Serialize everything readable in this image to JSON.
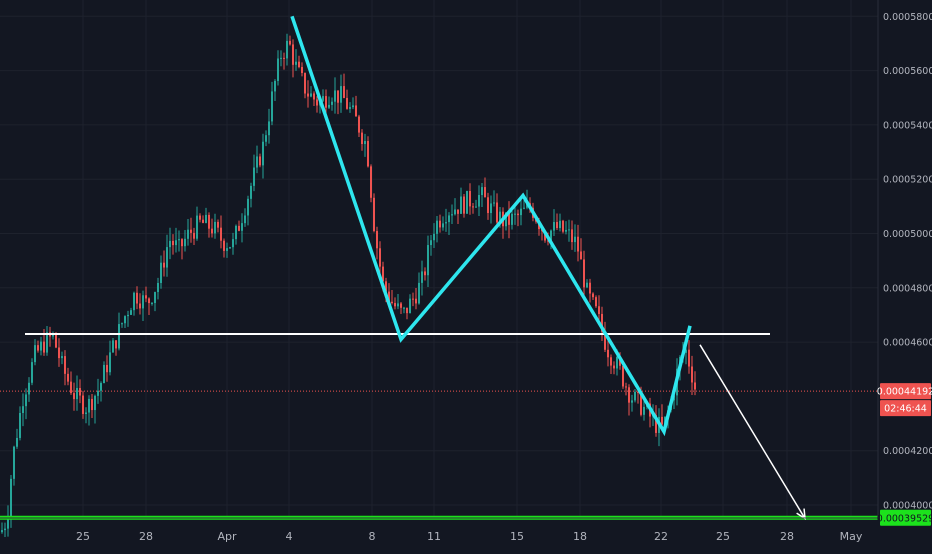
{
  "chart_data": {
    "type": "candlestick",
    "title": "",
    "grid": true,
    "x_tick_labels": [
      "25",
      "28",
      "Apr",
      "4",
      "8",
      "11",
      "15",
      "18",
      "22",
      "25",
      "28",
      "May"
    ],
    "y_tick_labels": [
      "0.00058000",
      "0.00056000",
      "0.00054000",
      "0.00052000",
      "0.00050000",
      "0.00048000",
      "0.00046000",
      "0.00042000",
      "0.00040000"
    ],
    "ylim": [
      0.000386,
      0.000586
    ],
    "current_price": {
      "label": "0.00044192",
      "value": 0.00044192,
      "color": "#ef5350"
    },
    "countdown": {
      "label": "02:46:44"
    },
    "target_price": {
      "label": "0.00039529",
      "value": 0.00039529,
      "color": "#1ce21c"
    },
    "candle_colors": {
      "up": "#26a69a",
      "down": "#ef5350"
    },
    "price_anchors": [
      [
        0,
        0.00039
      ],
      [
        6,
        0.000395
      ],
      [
        12,
        0.000418
      ],
      [
        22,
        0.00044
      ],
      [
        34,
        0.000455
      ],
      [
        44,
        0.00046
      ],
      [
        52,
        0.000462
      ],
      [
        62,
        0.00045
      ],
      [
        74,
        0.00044
      ],
      [
        86,
        0.000436
      ],
      [
        98,
        0.000443
      ],
      [
        110,
        0.000456
      ],
      [
        122,
        0.000468
      ],
      [
        134,
        0.000478
      ],
      [
        146,
        0.000474
      ],
      [
        158,
        0.000483
      ],
      [
        168,
        0.000498
      ],
      [
        178,
        0.000494
      ],
      [
        188,
        0.0005
      ],
      [
        200,
        0.000504
      ],
      [
        212,
        0.000502
      ],
      [
        222,
        0.000497
      ],
      [
        232,
        0.000496
      ],
      [
        242,
        0.000508
      ],
      [
        252,
        0.00052
      ],
      [
        262,
        0.000532
      ],
      [
        272,
        0.000552
      ],
      [
        280,
        0.000566
      ],
      [
        288,
        0.00057
      ],
      [
        296,
        0.00056
      ],
      [
        306,
        0.000552
      ],
      [
        318,
        0.000548
      ],
      [
        330,
        0.000552
      ],
      [
        342,
        0.00055
      ],
      [
        356,
        0.000541
      ],
      [
        366,
        0.000532
      ],
      [
        374,
        0.0005
      ],
      [
        382,
        0.000481
      ],
      [
        392,
        0.000474
      ],
      [
        402,
        0.00047
      ],
      [
        412,
        0.000476
      ],
      [
        422,
        0.000483
      ],
      [
        432,
        0.000502
      ],
      [
        444,
        0.000508
      ],
      [
        456,
        0.00051
      ],
      [
        468,
        0.000512
      ],
      [
        480,
        0.000514
      ],
      [
        492,
        0.000508
      ],
      [
        504,
        0.000504
      ],
      [
        516,
        0.000506
      ],
      [
        530,
        0.00051
      ],
      [
        544,
        0.0005
      ],
      [
        556,
        0.000502
      ],
      [
        566,
        0.0005
      ],
      [
        576,
        0.000496
      ],
      [
        586,
        0.000478
      ],
      [
        596,
        0.00047
      ],
      [
        606,
        0.000458
      ],
      [
        618,
        0.00045
      ],
      [
        630,
        0.00044
      ],
      [
        642,
        0.000436
      ],
      [
        654,
        0.00043
      ],
      [
        662,
        0.000428
      ],
      [
        670,
        0.000438
      ],
      [
        678,
        0.000452
      ],
      [
        684,
        0.000458
      ],
      [
        690,
        0.00045
      ],
      [
        696,
        0.00044
      ]
    ],
    "overlays": {
      "neckline": {
        "x1": 25,
        "x2": 770,
        "y1": 0.000463,
        "y2": 0.000463,
        "color": "#ffffff"
      },
      "target_line": {
        "x1": 0,
        "x2": 878,
        "y": 0.00039529,
        "color": "#1ce21c"
      },
      "pattern_path": {
        "color": "#2ee6ee",
        "points": [
          [
            292,
            0.00058
          ],
          [
            401,
            0.000461
          ],
          [
            523,
            0.000514
          ],
          [
            664,
            0.000427
          ],
          [
            690,
            0.000466
          ]
        ]
      },
      "projection_arrow": {
        "from": [
          700,
          0.000459
        ],
        "to": [
          805,
          0.000395
        ],
        "color": "#ffffff"
      }
    }
  }
}
